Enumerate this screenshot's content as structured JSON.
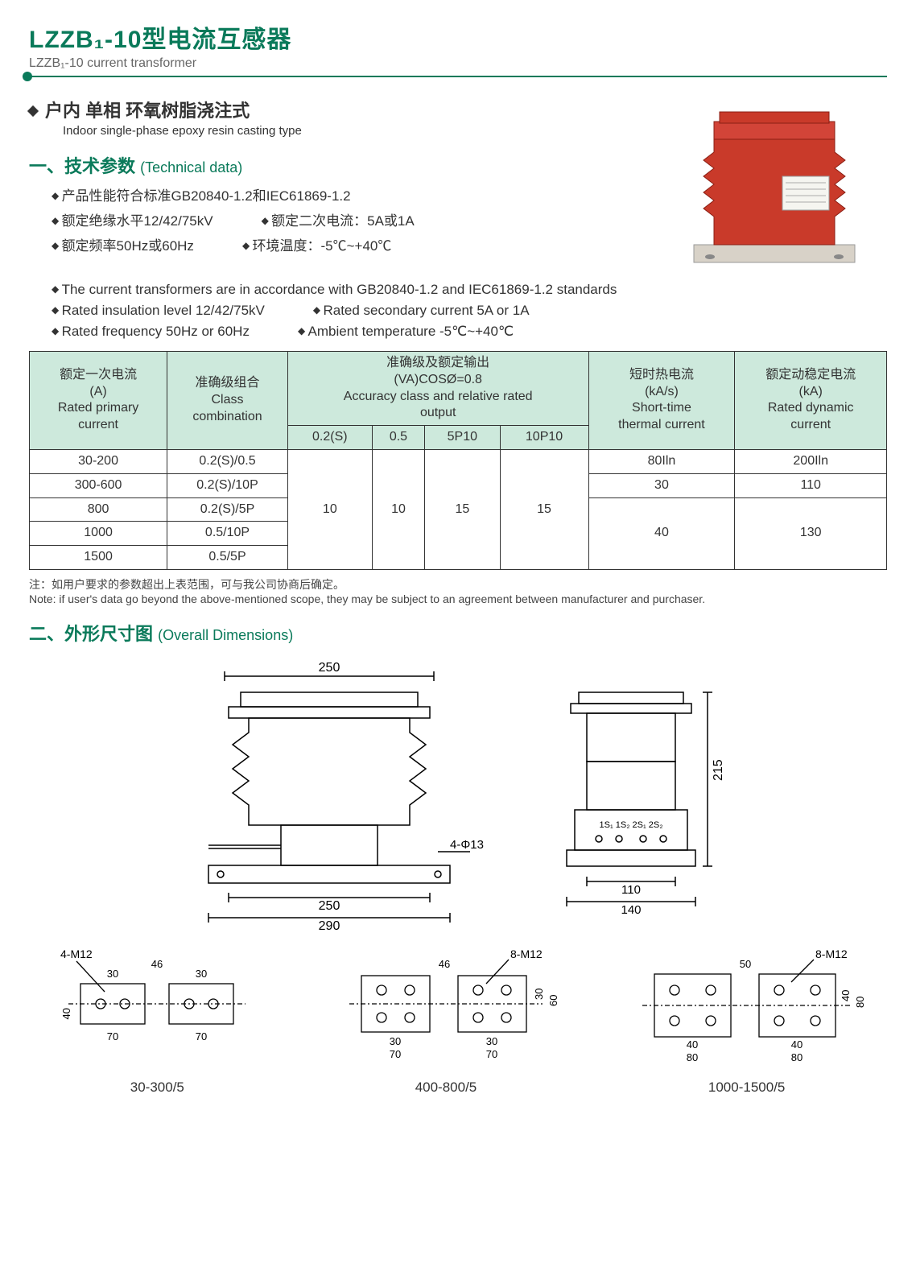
{
  "title_cn": "LZZB₁-10型电流互感器",
  "title_en": "LZZB₁-10 current transformer",
  "subtype_cn": "户内 单相 环氧树脂浇注式",
  "subtype_en": "Indoor single-phase epoxy resin casting type",
  "sec1_num": "一、",
  "sec1_cn": "技术参数",
  "sec1_en": "(Technical data)",
  "params_cn": [
    [
      "产品性能符合标准GB20840-1.2和IEC61869-1.2"
    ],
    [
      "额定绝缘水平12/42/75kV",
      "额定二次电流：5A或1A"
    ],
    [
      "额定频率50Hz或60Hz",
      "环境温度：-5℃~+40℃"
    ]
  ],
  "params_en": [
    [
      "The current transformers are in accordance with GB20840-1.2 and IEC61869-1.2 standards"
    ],
    [
      "Rated  insulation level 12/42/75kV",
      "Rated  secondary current 5A or 1A"
    ],
    [
      "Rated  frequency 50Hz or 60Hz",
      "Ambient temperature  -5℃~+40℃"
    ]
  ],
  "table": {
    "head": {
      "c1": [
        "额定一次电流",
        "(A)",
        "Rated primary",
        "current"
      ],
      "c2": [
        "准确级组合",
        "Class",
        "combination"
      ],
      "c3": [
        "准确级及额定输出",
        "(VA)COSØ=0.8",
        "Accuracy class and relative rated",
        "output"
      ],
      "c3sub": [
        "0.2(S)",
        "0.5",
        "5P10",
        "10P10"
      ],
      "c4": [
        "短时热电流",
        "(kA/s)",
        "Short-time",
        "thermal current"
      ],
      "c5": [
        "额定动稳定电流",
        "(kA)",
        "Rated dynamic",
        "current"
      ]
    },
    "rows": [
      {
        "a": "30-200",
        "b": "0.2(S)/0.5",
        "th": "80Iln",
        "dy": "200Iln"
      },
      {
        "a": "300-600",
        "b": "0.2(S)/10P",
        "th": "30",
        "dy": "110"
      },
      {
        "a": "800",
        "b": "0.2(S)/5P"
      },
      {
        "a": "1000",
        "b": "0.5/10P"
      },
      {
        "a": "1500",
        "b": "0.5/5P"
      }
    ],
    "merged": {
      "v02s": "10",
      "v05": "10",
      "v5p": "15",
      "v10p": "15",
      "th3": "40",
      "dy3": "130"
    }
  },
  "note_cn": "注：如用户要求的参数超出上表范围，可与我公司协商后确定。",
  "note_en": "Note: if user's data go beyond the above-mentioned scope, they may be subject to an agreement between manufacturer and purchaser.",
  "sec2_num": "二、",
  "sec2_cn": "外形尺寸图",
  "sec2_en": "(Overall Dimensions)",
  "dims": {
    "front": {
      "w_top": "250",
      "w_base": "250",
      "w_full": "290",
      "hole": "4-Φ13"
    },
    "side": {
      "h": "215",
      "w_inner": "110",
      "w_outer": "140",
      "terminals": "1S₁ 1S₂ 2S₁ 2S₂"
    }
  },
  "plates": [
    {
      "label": "30-300/5",
      "bolt": "4-M12",
      "d": {
        "a": "30",
        "b": "46",
        "c": "30",
        "h": "40",
        "w": "70"
      }
    },
    {
      "label": "400-800/5",
      "bolt": "8-M12",
      "d": {
        "a": "30",
        "b": "46",
        "c": "30",
        "h1": "30",
        "h2": "60",
        "w": "70"
      }
    },
    {
      "label": "1000-1500/5",
      "bolt": "8-M12",
      "d": {
        "a": "40",
        "b": "50",
        "h1": "40",
        "h2": "80",
        "w": "80"
      }
    }
  ],
  "colors": {
    "brand": "#0a7a5a",
    "table_head": "#cde9dc",
    "product_red": "#c93a2a",
    "product_dark": "#8a1f14"
  }
}
